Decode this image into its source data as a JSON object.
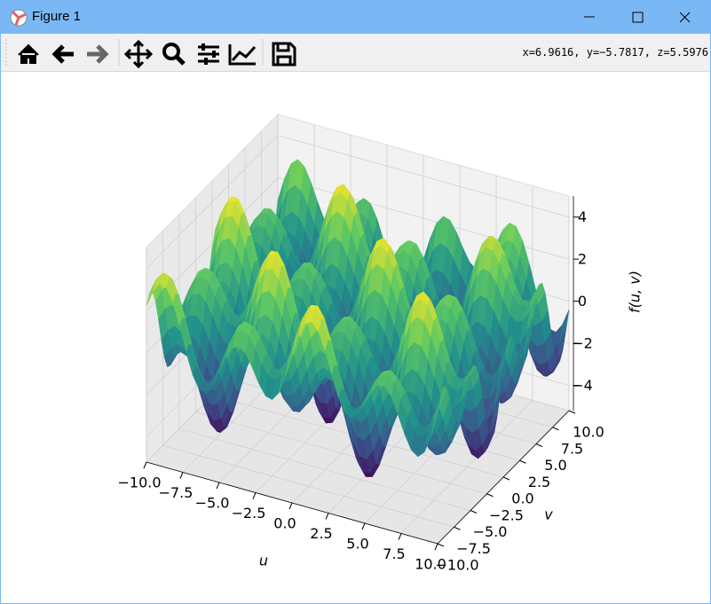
{
  "window": {
    "title": "Figure 1"
  },
  "toolbar": {
    "status": "x=6.9616, y=−5.7817, z=5.5976"
  },
  "chart_data": {
    "type": "surface3d",
    "colormap": "viridis",
    "xlabel": "u",
    "ylabel": "v",
    "zlabel": "f(u, v)",
    "xlim": [
      -10,
      10
    ],
    "xticks": [
      {
        "value": -10,
        "label": "−10.0"
      },
      {
        "value": -7.5,
        "label": "−7.5"
      },
      {
        "value": -5,
        "label": "−5.0"
      },
      {
        "value": -2.5,
        "label": "−2.5"
      },
      {
        "value": 0,
        "label": "0.0"
      },
      2.5,
      {
        "value": 5,
        "label": "5.0"
      },
      7.5,
      {
        "value": 10,
        "label": "10.0"
      }
    ],
    "ylim": [
      -10,
      10
    ],
    "yticks": [
      {
        "value": -10,
        "label": "−10.0"
      },
      {
        "value": -7.5,
        "label": "−7.5"
      },
      {
        "value": -5,
        "label": "−5.0"
      },
      {
        "value": -2.5,
        "label": "−2.5"
      },
      {
        "value": 0,
        "label": "0.0"
      },
      2.5,
      {
        "value": 5,
        "label": "5.0"
      },
      7.5,
      {
        "value": 10,
        "label": "10.0"
      }
    ],
    "zlim": [
      -5.2,
      5.0
    ],
    "zticks": [
      {
        "value": -4,
        "label": "−4"
      },
      {
        "value": -2,
        "label": "−2"
      },
      0,
      2,
      4
    ],
    "grid": true
  }
}
